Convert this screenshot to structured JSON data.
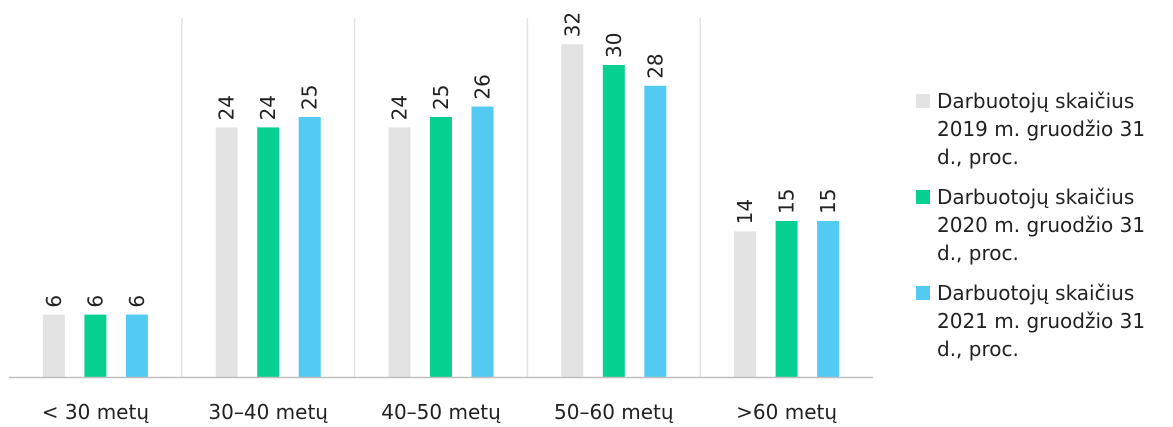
{
  "chart_data": {
    "type": "bar",
    "categories": [
      "< 30 metų",
      "30–40 metų",
      "40–50 metų",
      "50–60 metų",
      ">60 metų"
    ],
    "series": [
      {
        "name": "Darbuotojų skaičius 2019 m. gruodžio 31 d., proc.",
        "values": [
          6,
          24,
          24,
          32,
          14
        ],
        "color": "#e3e3e3"
      },
      {
        "name": "Darbuotojų skaičius 2020 m. gruodžio 31 d., proc.",
        "values": [
          6,
          24,
          25,
          30,
          15
        ],
        "color": "#08d091"
      },
      {
        "name": "Darbuotojų skaičius 2021 m. gruodžio 31 d., proc.",
        "values": [
          6,
          25,
          26,
          28,
          15
        ],
        "color": "#52caf2"
      }
    ],
    "title": "",
    "xlabel": "",
    "ylabel": "",
    "ylim": [
      0,
      36
    ],
    "grid": "vertical category separators",
    "data_labels": true,
    "legend_position": "right"
  }
}
